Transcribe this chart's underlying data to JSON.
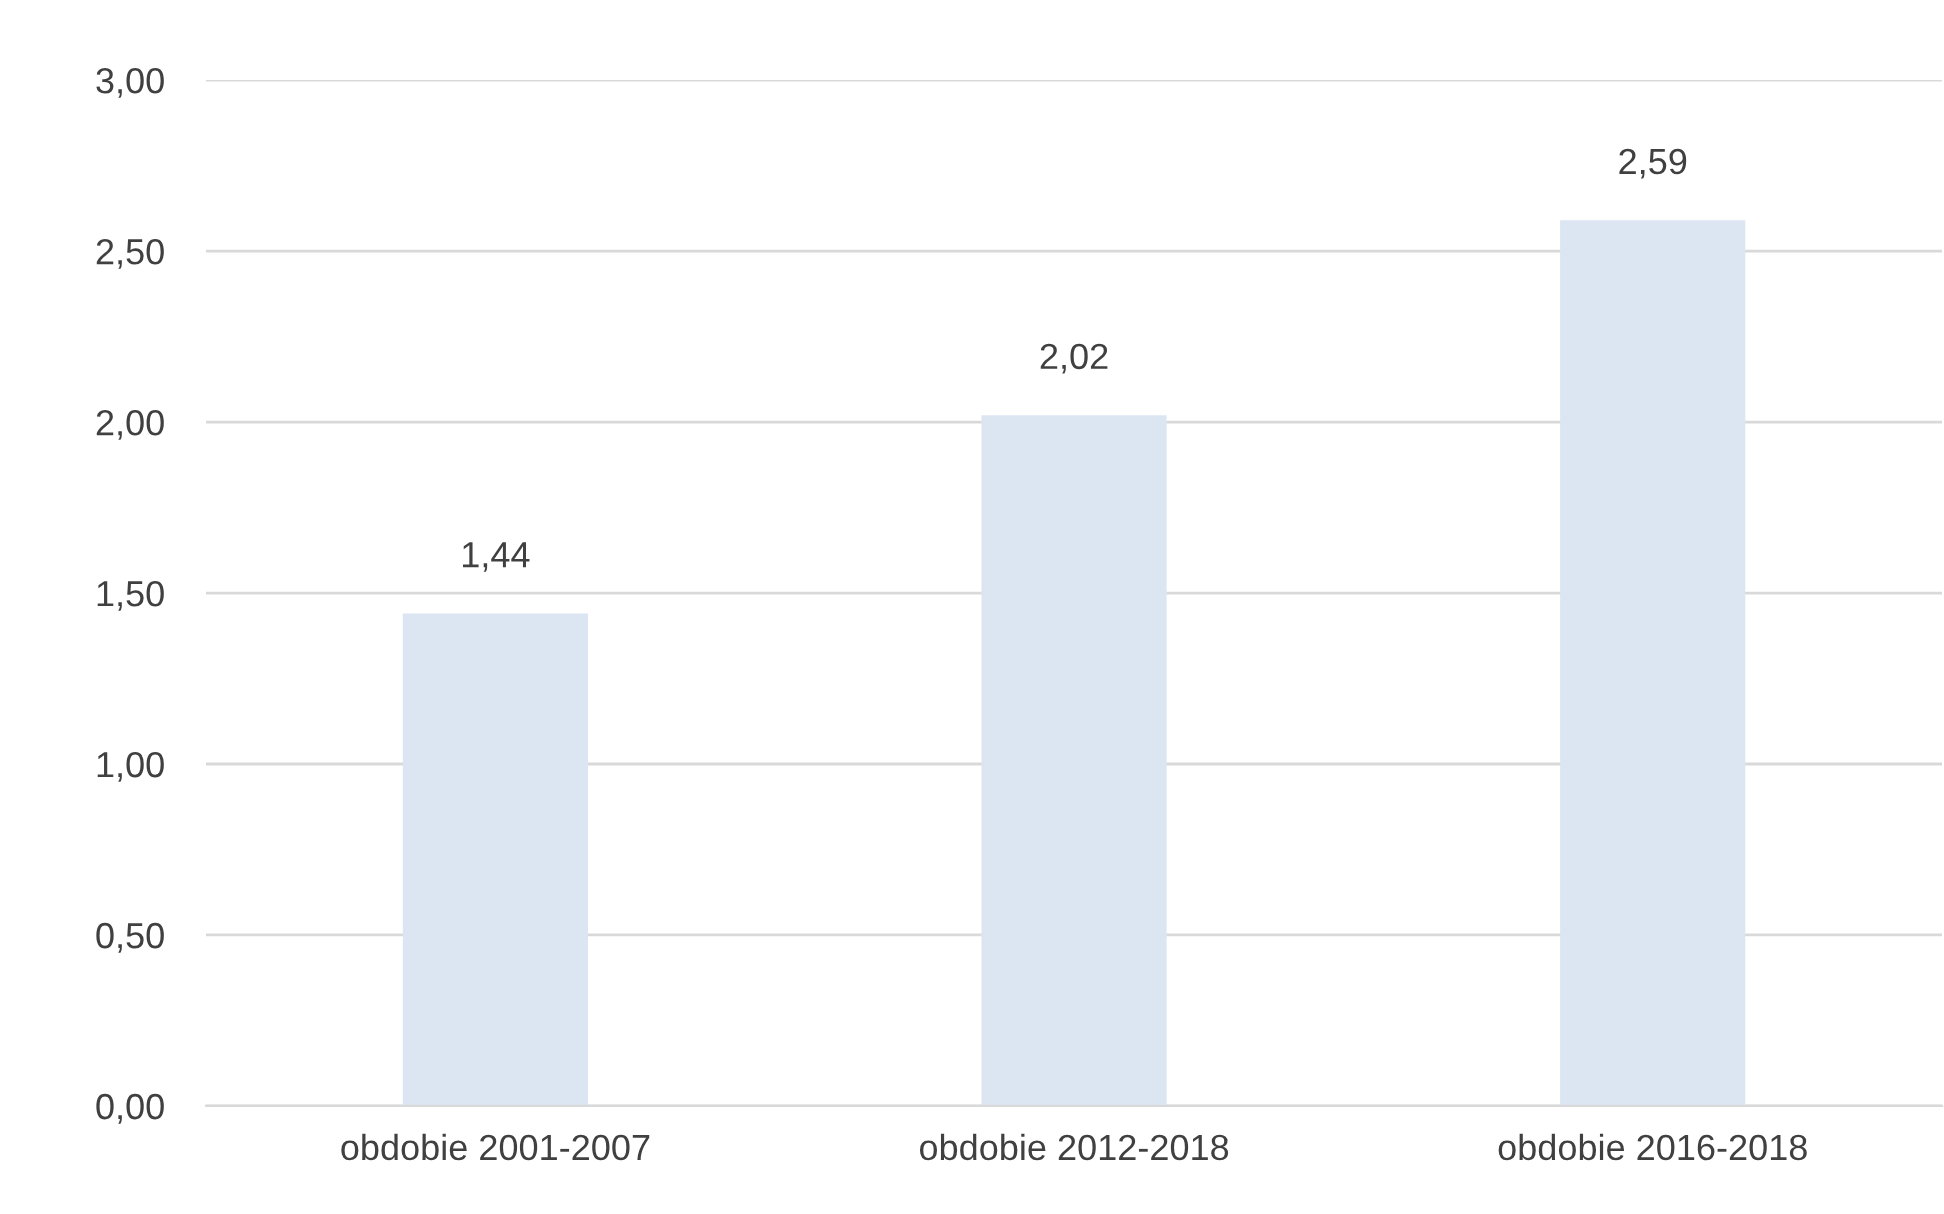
{
  "chart_data": {
    "type": "bar",
    "categories": [
      "obdobie 2001-2007",
      "obdobie 2012-2018",
      "obdobie 2016-2018"
    ],
    "values": [
      1.44,
      2.02,
      2.59
    ],
    "value_labels": [
      "1,44",
      "2,02",
      "2,59"
    ],
    "color": "#dce6f2",
    "ylim": [
      0,
      3
    ],
    "yticks": [
      {
        "value": 0,
        "label": "0,00"
      },
      {
        "value": 0.5,
        "label": "0,50"
      },
      {
        "value": 1,
        "label": "1,00"
      },
      {
        "value": 1.5,
        "label": "1,50"
      },
      {
        "value": 2,
        "label": "2,00"
      },
      {
        "value": 2.5,
        "label": "2,50"
      },
      {
        "value": 3,
        "label": "3,00"
      }
    ],
    "grid": "y"
  }
}
